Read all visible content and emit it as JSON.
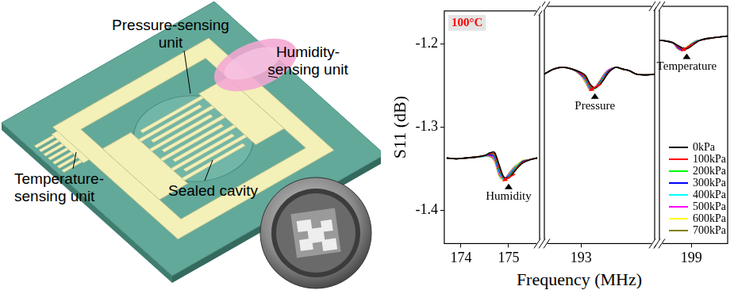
{
  "diagram": {
    "pressure_unit": [
      "Pressure-sensing",
      "unit"
    ],
    "humidity_unit": [
      "Humidity-",
      "sensing unit"
    ],
    "temperature_unit": [
      "Temperature-",
      "sensing unit"
    ],
    "cavity": [
      "Sealed cavity"
    ]
  },
  "chart_data": [
    {
      "type": "line",
      "title": "100°C",
      "ylabel": "S11 (dB)",
      "annotation": "Humidity",
      "grid": false,
      "x": [
        173.7,
        173.9,
        174.1,
        174.3,
        174.5,
        174.6,
        174.7,
        174.8,
        174.9,
        175.0,
        175.1,
        175.2,
        175.3,
        175.45,
        175.6
      ],
      "xlim": [
        173.65,
        175.65
      ],
      "xticks": [
        174,
        175
      ],
      "ylim": [
        -1.44,
        -1.16
      ],
      "yticks": [
        -1.4,
        -1.3,
        -1.2
      ],
      "series": [
        {
          "name": "0kPa",
          "color": "#000000",
          "values": [
            -1.337,
            -1.338,
            -1.337,
            -1.336,
            -1.334,
            -1.331,
            -1.33,
            -1.345,
            -1.36,
            -1.361,
            -1.355,
            -1.348,
            -1.343,
            -1.339,
            -1.337
          ]
        },
        {
          "name": "100kPa",
          "color": "#ff0000",
          "values": [
            -1.337,
            -1.338,
            -1.337,
            -1.336,
            -1.334,
            -1.332,
            -1.332,
            -1.348,
            -1.361,
            -1.361,
            -1.354,
            -1.347,
            -1.342,
            -1.339,
            -1.337
          ]
        },
        {
          "name": "200kPa",
          "color": "#00ff00",
          "values": [
            -1.337,
            -1.338,
            -1.337,
            -1.336,
            -1.334,
            -1.332,
            -1.333,
            -1.35,
            -1.362,
            -1.36,
            -1.353,
            -1.346,
            -1.342,
            -1.339,
            -1.337
          ]
        },
        {
          "name": "300kPa",
          "color": "#0000ff",
          "values": [
            -1.337,
            -1.338,
            -1.337,
            -1.336,
            -1.334,
            -1.333,
            -1.335,
            -1.352,
            -1.362,
            -1.359,
            -1.352,
            -1.346,
            -1.341,
            -1.339,
            -1.337
          ]
        },
        {
          "name": "400kPa",
          "color": "#00ffff",
          "values": [
            -1.337,
            -1.338,
            -1.337,
            -1.336,
            -1.335,
            -1.333,
            -1.336,
            -1.354,
            -1.363,
            -1.358,
            -1.351,
            -1.345,
            -1.341,
            -1.339,
            -1.337
          ]
        },
        {
          "name": "500kPa",
          "color": "#ff00ff",
          "values": [
            -1.337,
            -1.338,
            -1.337,
            -1.336,
            -1.335,
            -1.334,
            -1.338,
            -1.356,
            -1.363,
            -1.357,
            -1.35,
            -1.345,
            -1.341,
            -1.339,
            -1.337
          ]
        },
        {
          "name": "600kPa",
          "color": "#ffff00",
          "values": [
            -1.337,
            -1.338,
            -1.337,
            -1.336,
            -1.335,
            -1.334,
            -1.339,
            -1.357,
            -1.364,
            -1.357,
            -1.35,
            -1.344,
            -1.34,
            -1.339,
            -1.337
          ]
        },
        {
          "name": "700kPa",
          "color": "#808000",
          "values": [
            -1.337,
            -1.338,
            -1.337,
            -1.336,
            -1.335,
            -1.335,
            -1.34,
            -1.358,
            -1.364,
            -1.356,
            -1.349,
            -1.344,
            -1.34,
            -1.339,
            -1.337
          ]
        }
      ]
    },
    {
      "type": "line",
      "xlabel": "Frequency (MHz)",
      "annotation": "Pressure",
      "grid": false,
      "tick_labels": "x",
      "x": [
        192.2,
        192.4,
        192.6,
        192.8,
        193.0,
        193.1,
        193.2,
        193.3,
        193.4,
        193.5,
        193.6,
        193.75,
        193.9,
        194.05,
        194.2,
        194.4,
        194.6
      ],
      "xlim": [
        192.2,
        194.6
      ],
      "xticks": [
        193
      ],
      "ylim": [
        -1.44,
        -1.16
      ],
      "yticks": [
        -1.4,
        -1.3,
        -1.2
      ],
      "series": [
        {
          "name": "0kPa",
          "color": "#000000",
          "values": [
            -1.24,
            -1.234,
            -1.232,
            -1.234,
            -1.238,
            -1.242,
            -1.252,
            -1.256,
            -1.253,
            -1.246,
            -1.238,
            -1.232,
            -1.234,
            -1.236,
            -1.24,
            -1.241,
            -1.24
          ]
        },
        {
          "name": "100kPa",
          "color": "#ff0000",
          "values": [
            -1.24,
            -1.234,
            -1.232,
            -1.234,
            -1.239,
            -1.244,
            -1.254,
            -1.256,
            -1.252,
            -1.245,
            -1.237,
            -1.232,
            -1.234,
            -1.236,
            -1.24,
            -1.241,
            -1.24
          ]
        },
        {
          "name": "200kPa",
          "color": "#00ff00",
          "values": [
            -1.24,
            -1.234,
            -1.232,
            -1.234,
            -1.239,
            -1.245,
            -1.255,
            -1.257,
            -1.251,
            -1.244,
            -1.237,
            -1.232,
            -1.234,
            -1.236,
            -1.24,
            -1.241,
            -1.24
          ]
        },
        {
          "name": "300kPa",
          "color": "#0000ff",
          "values": [
            -1.24,
            -1.234,
            -1.232,
            -1.234,
            -1.24,
            -1.246,
            -1.256,
            -1.257,
            -1.25,
            -1.243,
            -1.236,
            -1.232,
            -1.234,
            -1.236,
            -1.24,
            -1.241,
            -1.24
          ]
        },
        {
          "name": "400kPa",
          "color": "#00ffff",
          "values": [
            -1.24,
            -1.234,
            -1.232,
            -1.234,
            -1.24,
            -1.247,
            -1.257,
            -1.257,
            -1.25,
            -1.242,
            -1.236,
            -1.232,
            -1.234,
            -1.236,
            -1.24,
            -1.241,
            -1.24
          ]
        },
        {
          "name": "500kPa",
          "color": "#ff00ff",
          "values": [
            -1.24,
            -1.234,
            -1.232,
            -1.234,
            -1.241,
            -1.248,
            -1.258,
            -1.256,
            -1.249,
            -1.241,
            -1.235,
            -1.232,
            -1.234,
            -1.236,
            -1.24,
            -1.241,
            -1.24
          ]
        },
        {
          "name": "600kPa",
          "color": "#ffff00",
          "values": [
            -1.24,
            -1.234,
            -1.232,
            -1.234,
            -1.241,
            -1.249,
            -1.258,
            -1.256,
            -1.248,
            -1.241,
            -1.235,
            -1.232,
            -1.234,
            -1.236,
            -1.24,
            -1.241,
            -1.24
          ]
        },
        {
          "name": "700kPa",
          "color": "#808000",
          "values": [
            -1.24,
            -1.234,
            -1.232,
            -1.234,
            -1.242,
            -1.25,
            -1.259,
            -1.256,
            -1.248,
            -1.24,
            -1.235,
            -1.232,
            -1.234,
            -1.236,
            -1.24,
            -1.241,
            -1.24
          ]
        }
      ]
    },
    {
      "type": "line",
      "annotation": "Temperature",
      "grid": false,
      "tick_labels": "x",
      "legend": "lower right",
      "x": [
        198.3,
        198.45,
        198.6,
        198.7,
        198.8,
        198.9,
        199.0,
        199.1,
        199.2,
        199.35,
        199.5,
        199.65,
        199.8
      ],
      "xlim": [
        198.3,
        199.8
      ],
      "xticks": [
        199
      ],
      "ylim": [
        -1.44,
        -1.16
      ],
      "yticks": [
        -1.4,
        -1.3,
        -1.2
      ],
      "series": [
        {
          "name": "0kPa",
          "color": "#000000",
          "values": [
            -1.2,
            -1.201,
            -1.203,
            -1.206,
            -1.209,
            -1.21,
            -1.207,
            -1.203,
            -1.2,
            -1.198,
            -1.197,
            -1.196,
            -1.195
          ]
        },
        {
          "name": "100kPa",
          "color": "#ff0000",
          "values": [
            -1.2,
            -1.201,
            -1.203,
            -1.207,
            -1.21,
            -1.21,
            -1.206,
            -1.202,
            -1.2,
            -1.198,
            -1.197,
            -1.196,
            -1.195
          ]
        },
        {
          "name": "200kPa",
          "color": "#00ff00",
          "values": [
            -1.2,
            -1.201,
            -1.203,
            -1.207,
            -1.21,
            -1.21,
            -1.206,
            -1.202,
            -1.2,
            -1.198,
            -1.197,
            -1.196,
            -1.195
          ]
        },
        {
          "name": "300kPa",
          "color": "#0000ff",
          "values": [
            -1.2,
            -1.201,
            -1.203,
            -1.208,
            -1.211,
            -1.209,
            -1.205,
            -1.202,
            -1.2,
            -1.198,
            -1.197,
            -1.196,
            -1.195
          ]
        },
        {
          "name": "400kPa",
          "color": "#00ffff",
          "values": [
            -1.2,
            -1.201,
            -1.203,
            -1.208,
            -1.211,
            -1.209,
            -1.205,
            -1.201,
            -1.2,
            -1.198,
            -1.197,
            -1.196,
            -1.195
          ]
        },
        {
          "name": "500kPa",
          "color": "#ff00ff",
          "values": [
            -1.2,
            -1.201,
            -1.203,
            -1.209,
            -1.212,
            -1.209,
            -1.205,
            -1.201,
            -1.2,
            -1.198,
            -1.197,
            -1.196,
            -1.195
          ]
        },
        {
          "name": "600kPa",
          "color": "#ffff00",
          "values": [
            -1.2,
            -1.201,
            -1.203,
            -1.209,
            -1.212,
            -1.208,
            -1.204,
            -1.201,
            -1.2,
            -1.198,
            -1.197,
            -1.196,
            -1.195
          ]
        },
        {
          "name": "700kPa",
          "color": "#808000",
          "values": [
            -1.2,
            -1.201,
            -1.203,
            -1.21,
            -1.212,
            -1.208,
            -1.204,
            -1.201,
            -1.2,
            -1.198,
            -1.197,
            -1.196,
            -1.195
          ]
        }
      ]
    }
  ]
}
